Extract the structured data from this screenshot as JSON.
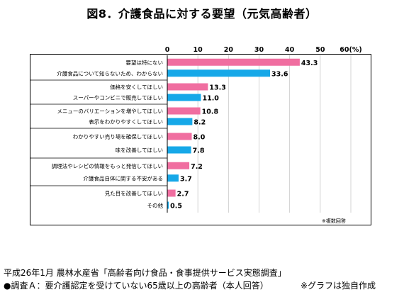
{
  "title": "図8．介護食品に対する要望（元気高齢者）",
  "note": "※複数回答",
  "source": "平成26年1月 農林水産省「高齢者向け食品・食事提供サービス実態調査」",
  "survey": "●調査Ａ：要介護認定を受けていない65歳以上の高齢者（本人回答）",
  "credit": "※グラフは独自作成",
  "colors": {
    "pink": "#f06ea0",
    "blue": "#16a8e8"
  },
  "chart_data": {
    "type": "bar",
    "orientation": "horizontal",
    "xlim": [
      0,
      60
    ],
    "x_ticks": [
      "0",
      "10",
      "20",
      "30",
      "40",
      "50",
      "60(%)"
    ],
    "grid": true,
    "groups": [
      [
        {
          "label": "要望は特にない",
          "value": 43.3,
          "value_label": "43.3",
          "color": "pink"
        },
        {
          "label": "介護食品について知らないため、わからない",
          "value": 33.6,
          "value_label": "33.6",
          "color": "blue"
        }
      ],
      [
        {
          "label": "価格を安くしてほしい",
          "value": 13.3,
          "value_label": "13.3",
          "color": "pink"
        },
        {
          "label": "スーパーやコンビニで販売してほしい",
          "value": 11.0,
          "value_label": "11.0",
          "color": "blue"
        }
      ],
      [
        {
          "label": "メニューのバリエーションを増やしてほしい",
          "value": 10.8,
          "value_label": "10.8",
          "color": "pink"
        },
        {
          "label": "表示をわかりやすくしてほしい",
          "value": 8.2,
          "value_label": "8.2",
          "color": "blue"
        }
      ],
      [
        {
          "label": "わかりやすい売り場を確保してほしい",
          "value": 8.0,
          "value_label": "8.0",
          "color": "pink"
        },
        {
          "label": "味を改善してほしい",
          "value": 7.8,
          "value_label": "7.8",
          "color": "blue"
        }
      ],
      [
        {
          "label": "調理法やレシピの情報をもっと発信してほしい",
          "value": 7.2,
          "value_label": "7.2",
          "color": "pink"
        },
        {
          "label": "介護食品自体に関する不安がある",
          "value": 3.7,
          "value_label": "3.7",
          "color": "blue"
        }
      ],
      [
        {
          "label": "見た目を改善してほしい",
          "value": 2.7,
          "value_label": "2.7",
          "color": "pink"
        },
        {
          "label": "その他",
          "value": 0.5,
          "value_label": "0.5",
          "color": "blue"
        }
      ]
    ]
  }
}
